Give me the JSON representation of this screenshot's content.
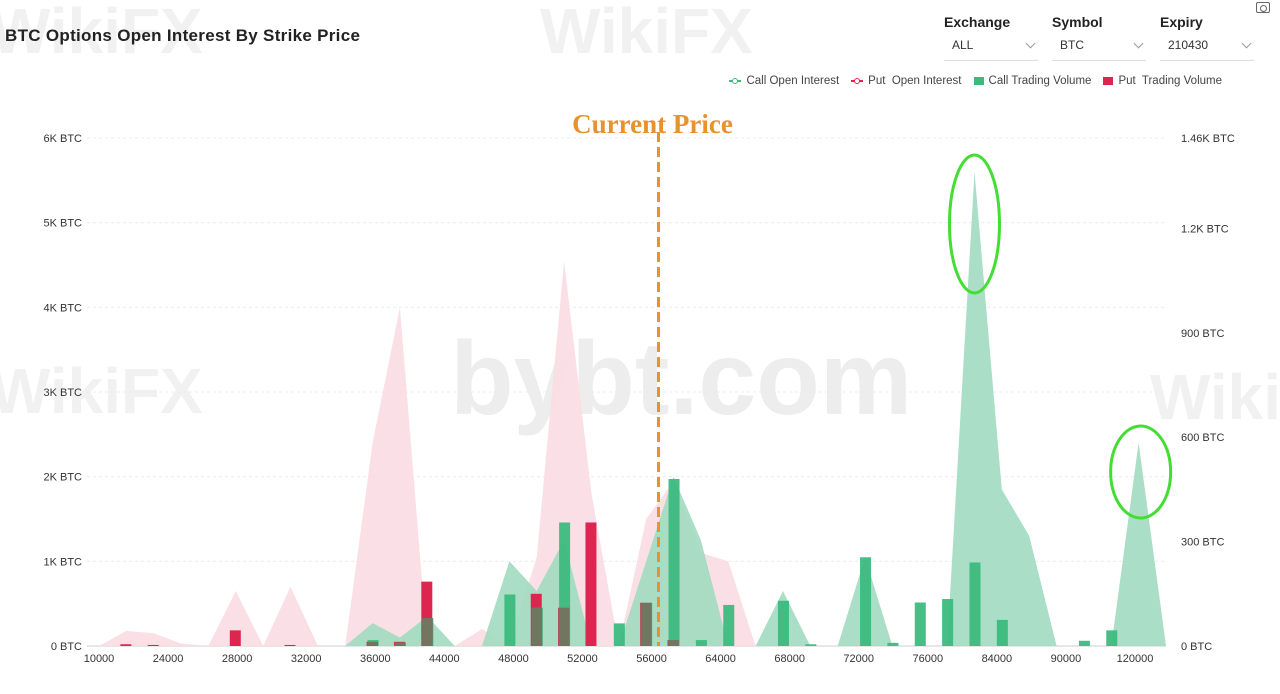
{
  "title": "BTC Options Open Interest By Strike Price",
  "controls": {
    "exchange": {
      "label": "Exchange",
      "value": "ALL"
    },
    "symbol": {
      "label": "Symbol",
      "value": "BTC"
    },
    "expiry": {
      "label": "Expiry",
      "value": "210430"
    }
  },
  "watermarks": {
    "primary": "WikiFX",
    "secondary": "bybt.com"
  },
  "colors": {
    "call": "#3cba7e",
    "put": "#dc2650",
    "call_area": "#9ed9be",
    "put_area": "#f9dde3",
    "annotation": "#e8922d",
    "highlight": "#44dd33"
  },
  "chart_data": {
    "type": "area",
    "annotation": "Current Price",
    "current_price_x": 57500,
    "legend": [
      {
        "name": "Call Open Interest",
        "kind": "line",
        "color": "#3cba7e"
      },
      {
        "name": "Put  Open Interest",
        "kind": "line",
        "color": "#dc2650"
      },
      {
        "name": "Call Trading Volume",
        "kind": "bar",
        "color": "#3cba7e"
      },
      {
        "name": "Put  Trading Volume",
        "kind": "bar",
        "color": "#dc2650"
      }
    ],
    "x_ticks": [
      "10000",
      "24000",
      "28000",
      "32000",
      "36000",
      "44000",
      "48000",
      "52000",
      "56000",
      "64000",
      "68000",
      "72000",
      "76000",
      "84000",
      "90000",
      "120000"
    ],
    "y_left": {
      "ticks": [
        "0 BTC",
        "1K BTC",
        "2K BTC",
        "3K BTC",
        "4K BTC",
        "5K BTC",
        "6K BTC"
      ],
      "range": [
        0,
        6000
      ]
    },
    "y_right": {
      "ticks": [
        "0 BTC",
        "300 BTC",
        "600 BTC",
        "900 BTC",
        "1.2K BTC",
        "1.46K BTC"
      ],
      "range": [
        0,
        1460
      ]
    },
    "strikes": [
      "10000",
      "15000",
      "20000",
      "22000",
      "24000",
      "26000",
      "28000",
      "30000",
      "32000",
      "34000",
      "36000",
      "38000",
      "40000",
      "42000",
      "44000",
      "46000",
      "48000",
      "50000",
      "52000",
      "54000",
      "56000",
      "58000",
      "60000",
      "62000",
      "64000",
      "66000",
      "68000",
      "70000",
      "72000",
      "74000",
      "76000",
      "78000",
      "80000",
      "84000",
      "88000",
      "90000",
      "100000",
      "110000",
      "120000",
      "130000"
    ],
    "series": [
      {
        "name": "Call Open Interest",
        "axis": "left",
        "values": [
          0,
          0,
          0,
          0,
          0,
          0,
          0,
          0,
          0,
          0,
          270,
          100,
          350,
          0,
          0,
          1000,
          650,
          1250,
          0,
          0,
          1000,
          2000,
          1250,
          0,
          0,
          650,
          0,
          0,
          1050,
          0,
          0,
          0,
          5600,
          1850,
          1300,
          0,
          0,
          0,
          2400,
          0
        ]
      },
      {
        "name": "Put  Open Interest",
        "axis": "left",
        "values": [
          0,
          180,
          150,
          30,
          0,
          650,
          0,
          700,
          0,
          0,
          2400,
          4000,
          0,
          0,
          200,
          0,
          1050,
          4550,
          1800,
          0,
          1500,
          1950,
          1100,
          1000,
          0,
          0,
          0,
          0,
          0,
          0,
          0,
          0,
          0,
          0,
          0,
          0,
          0,
          0,
          0,
          0
        ]
      },
      {
        "name": "Call Trading Volume",
        "axis": "right",
        "values": [
          0,
          0,
          0,
          0,
          0,
          0,
          0,
          0,
          0,
          0,
          17,
          10,
          80,
          0,
          0,
          148,
          110,
          355,
          0,
          65,
          124,
          480,
          17,
          118,
          0,
          130,
          5,
          0,
          255,
          9,
          125,
          135,
          240,
          75,
          0,
          0,
          15,
          45,
          0,
          0
        ]
      },
      {
        "name": "Put  Trading Volume",
        "axis": "right",
        "values": [
          0,
          5,
          3,
          0,
          0,
          45,
          0,
          3,
          0,
          0,
          12,
          12,
          185,
          0,
          0,
          0,
          150,
          110,
          355,
          0,
          124,
          17,
          0,
          0,
          0,
          0,
          0,
          0,
          0,
          0,
          0,
          0,
          0,
          0,
          0,
          0,
          0,
          0,
          0,
          0
        ]
      }
    ]
  }
}
